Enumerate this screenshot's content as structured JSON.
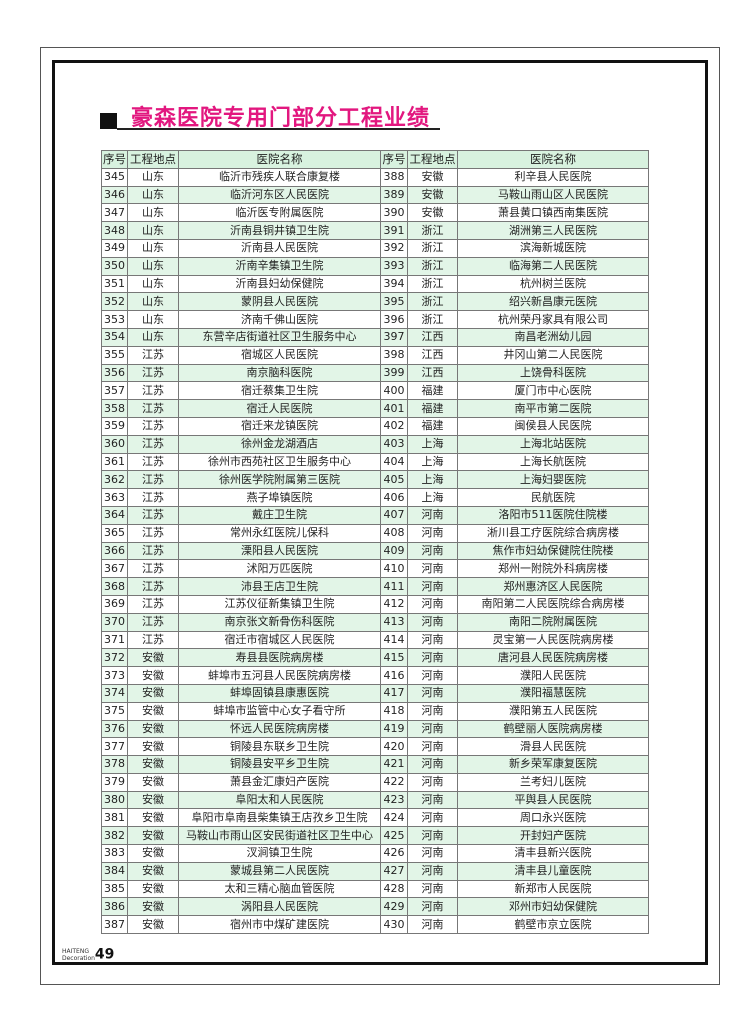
{
  "title": "豪森医院专用门部分工程业绩",
  "table": {
    "headers": [
      "序号",
      "工程地点",
      "医院名称",
      "序号",
      "工程地点",
      "医院名称"
    ],
    "rows": [
      [
        "345",
        "山东",
        "临沂市残疾人联合康复楼",
        "388",
        "安徽",
        "利辛县人民医院"
      ],
      [
        "346",
        "山东",
        "临沂河东区人民医院",
        "389",
        "安徽",
        "马鞍山雨山区人民医院"
      ],
      [
        "347",
        "山东",
        "临沂医专附属医院",
        "390",
        "安徽",
        "萧县黄口镇西南集医院"
      ],
      [
        "348",
        "山东",
        "沂南县铜井镇卫生院",
        "391",
        "浙江",
        "湖洲第三人民医院"
      ],
      [
        "349",
        "山东",
        "沂南县人民医院",
        "392",
        "浙江",
        "滨海新城医院"
      ],
      [
        "350",
        "山东",
        "沂南辛集镇卫生院",
        "393",
        "浙江",
        "临海第二人民医院"
      ],
      [
        "351",
        "山东",
        "沂南县妇幼保健院",
        "394",
        "浙江",
        "杭州树兰医院"
      ],
      [
        "352",
        "山东",
        "蒙阴县人民医院",
        "395",
        "浙江",
        "绍兴新昌康元医院"
      ],
      [
        "353",
        "山东",
        "济南千佛山医院",
        "396",
        "浙江",
        "杭州荣丹家具有限公司"
      ],
      [
        "354",
        "山东",
        "东营辛店街道社区卫生服务中心",
        "397",
        "江西",
        "南昌老洲幼儿园"
      ],
      [
        "355",
        "江苏",
        "宿城区人民医院",
        "398",
        "江西",
        "井冈山第二人民医院"
      ],
      [
        "356",
        "江苏",
        "南京脑科医院",
        "399",
        "江西",
        "上饶骨科医院"
      ],
      [
        "357",
        "江苏",
        "宿迁蔡集卫生院",
        "400",
        "福建",
        "厦门市中心医院"
      ],
      [
        "358",
        "江苏",
        "宿迁人民医院",
        "401",
        "福建",
        "南平市第二医院"
      ],
      [
        "359",
        "江苏",
        "宿迁来龙镇医院",
        "402",
        "福建",
        "闽侯县人民医院"
      ],
      [
        "360",
        "江苏",
        "徐州金龙湖酒店",
        "403",
        "上海",
        "上海北站医院"
      ],
      [
        "361",
        "江苏",
        "徐州市西苑社区卫生服务中心",
        "404",
        "上海",
        "上海长航医院"
      ],
      [
        "362",
        "江苏",
        "徐州医学院附属第三医院",
        "405",
        "上海",
        "上海妇婴医院"
      ],
      [
        "363",
        "江苏",
        "燕子埠镇医院",
        "406",
        "上海",
        "民航医院"
      ],
      [
        "364",
        "江苏",
        "戴庄卫生院",
        "407",
        "河南",
        "洛阳市511医院住院楼"
      ],
      [
        "365",
        "江苏",
        "常州永红医院儿保科",
        "408",
        "河南",
        "淅川县工疗医院综合病房楼"
      ],
      [
        "366",
        "江苏",
        "溧阳县人民医院",
        "409",
        "河南",
        "焦作市妇幼保健院住院楼"
      ],
      [
        "367",
        "江苏",
        "沭阳万匹医院",
        "410",
        "河南",
        "郑州一附院外科病房楼"
      ],
      [
        "368",
        "江苏",
        "沛县王店卫生院",
        "411",
        "河南",
        "郑州惠济区人民医院"
      ],
      [
        "369",
        "江苏",
        "江苏仪征新集镇卫生院",
        "412",
        "河南",
        "南阳第二人民医院综合病房楼"
      ],
      [
        "370",
        "江苏",
        "南京张文新骨伤科医院",
        "413",
        "河南",
        "南阳二院附属医院"
      ],
      [
        "371",
        "江苏",
        "宿迁市宿城区人民医院",
        "414",
        "河南",
        "灵宝第一人民医院病房楼"
      ],
      [
        "372",
        "安徽",
        "寿县县医院病房楼",
        "415",
        "河南",
        "唐河县人民医院病房楼"
      ],
      [
        "373",
        "安徽",
        "蚌埠市五河县人民医院病房楼",
        "416",
        "河南",
        "濮阳人民医院"
      ],
      [
        "374",
        "安徽",
        "蚌埠固镇县康惠医院",
        "417",
        "河南",
        "濮阳福慧医院"
      ],
      [
        "375",
        "安徽",
        "蚌埠市监管中心女子看守所",
        "418",
        "河南",
        "濮阳第五人民医院"
      ],
      [
        "376",
        "安徽",
        "怀远人民医院病房楼",
        "419",
        "河南",
        "鹤壁丽人医院病房楼"
      ],
      [
        "377",
        "安徽",
        "铜陵县东联乡卫生院",
        "420",
        "河南",
        "滑县人民医院"
      ],
      [
        "378",
        "安徽",
        "铜陵县安平乡卫生院",
        "421",
        "河南",
        "新乡荣军康复医院"
      ],
      [
        "379",
        "安徽",
        "萧县金汇康妇产医院",
        "422",
        "河南",
        "兰考妇儿医院"
      ],
      [
        "380",
        "安徽",
        "阜阳太和人民医院",
        "423",
        "河南",
        "平舆县人民医院"
      ],
      [
        "381",
        "安徽",
        "阜阳市阜南县柴集镇王店孜乡卫生院",
        "424",
        "河南",
        "周口永兴医院"
      ],
      [
        "382",
        "安徽",
        "马鞍山市雨山区安民街道社区卫生中心",
        "425",
        "河南",
        "开封妇产医院"
      ],
      [
        "383",
        "安徽",
        "汊涧镇卫生院",
        "426",
        "河南",
        "清丰县新兴医院"
      ],
      [
        "384",
        "安徽",
        "蒙城县第二人民医院",
        "427",
        "河南",
        "清丰县儿童医院"
      ],
      [
        "385",
        "安徽",
        "太和三精心脑血管医院",
        "428",
        "河南",
        "新郑市人民医院"
      ],
      [
        "386",
        "安徽",
        "涡阳县人民医院",
        "429",
        "河南",
        "邓州市妇幼保健院"
      ],
      [
        "387",
        "安徽",
        "宿州市中煤矿建医院",
        "430",
        "河南",
        "鹤壁市京立医院"
      ]
    ]
  },
  "footer": {
    "brand_line1": "HAITENG",
    "brand_line2": "Decoration",
    "page_number": "49"
  },
  "colors": {
    "title": "#e2177f",
    "header_bg": "#d8f2df",
    "row_alt_bg": "#e2f5e7"
  }
}
